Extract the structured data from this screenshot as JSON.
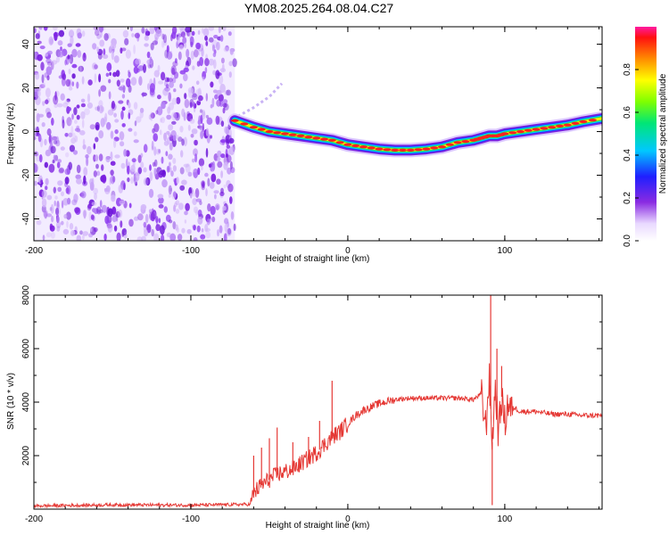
{
  "title": "YM08.2025.264.08.04.C27",
  "colors": {
    "snr_line": "#e53935",
    "noise": "#7b1fe0",
    "axis": "#000000"
  },
  "chart_data": [
    {
      "type": "heatmap",
      "name": "spectrogram",
      "xlabel": "Height of straight line (km)",
      "ylabel": "Frequency (Hz)",
      "xlim": [
        -200,
        162
      ],
      "ylim": [
        -50,
        48
      ],
      "xticks": [
        -200,
        -100,
        0,
        100
      ],
      "yticks": [
        40,
        20,
        0,
        -20,
        -40
      ],
      "noise_region_end_km": -72,
      "colorbar": {
        "label": "Normalized spectral amplitude",
        "range": [
          0,
          1
        ],
        "ticks": [
          "0.0",
          "0.2",
          "0.4",
          "0.6",
          "0.8"
        ]
      },
      "trace": {
        "x": [
          -72,
          -60,
          -50,
          -40,
          -30,
          -20,
          -10,
          0,
          10,
          20,
          30,
          40,
          50,
          60,
          70,
          80,
          85,
          90,
          95,
          100,
          110,
          120,
          130,
          140,
          150,
          162
        ],
        "y": [
          5,
          2,
          0,
          -1,
          -2,
          -3,
          -4,
          -6,
          -7,
          -8,
          -8.5,
          -8.5,
          -8,
          -7,
          -5,
          -4,
          -3,
          -2,
          -2,
          -1,
          0,
          1,
          2,
          3,
          4.5,
          6
        ]
      },
      "faint_trace": {
        "x": [
          -70,
          -60,
          -50,
          -42
        ],
        "y": [
          7,
          11,
          16,
          22
        ]
      }
    },
    {
      "type": "line",
      "name": "snr",
      "xlabel": "Height of straight line (km)",
      "ylabel": "SNR (10 * v/v)",
      "xlim": [
        -200,
        162
      ],
      "ylim": [
        0,
        8000
      ],
      "xticks": [
        -200,
        -100,
        0,
        100
      ],
      "yticks": [
        8000,
        6000,
        4000,
        2000
      ],
      "series": [
        {
          "name": "SNR",
          "x": [
            -200,
            -150,
            -100,
            -62,
            -60,
            -55,
            -50,
            -45,
            -40,
            -35,
            -30,
            -25,
            -20,
            -15,
            -10,
            -5,
            0,
            5,
            10,
            20,
            30,
            40,
            50,
            60,
            70,
            80,
            85,
            88,
            90,
            92,
            94,
            96,
            98,
            100,
            102,
            104,
            106,
            110,
            120,
            130,
            140,
            150,
            162
          ],
          "y": [
            120,
            160,
            150,
            180,
            600,
            900,
            1100,
            1300,
            1400,
            1500,
            1700,
            1900,
            2100,
            2400,
            2700,
            2900,
            3200,
            3500,
            3700,
            3950,
            4100,
            4150,
            4150,
            4150,
            4150,
            4100,
            4300,
            3000,
            5000,
            2500,
            4600,
            2800,
            4200,
            3200,
            4000,
            3700,
            3800,
            3650,
            3650,
            3550,
            3550,
            3500,
            3500
          ]
        }
      ],
      "spikes": [
        {
          "x": -60,
          "y": 2000
        },
        {
          "x": -55,
          "y": 2300
        },
        {
          "x": -50,
          "y": 2650
        },
        {
          "x": -45,
          "y": 3050
        },
        {
          "x": -35,
          "y": 2500
        },
        {
          "x": -25,
          "y": 2700
        },
        {
          "x": -18,
          "y": 3300
        },
        {
          "x": -10,
          "y": 4800
        },
        {
          "x": 91,
          "y": 8200
        },
        {
          "x": 92,
          "y": 150
        },
        {
          "x": 95,
          "y": 6000
        },
        {
          "x": 98,
          "y": 5350
        }
      ]
    }
  ]
}
